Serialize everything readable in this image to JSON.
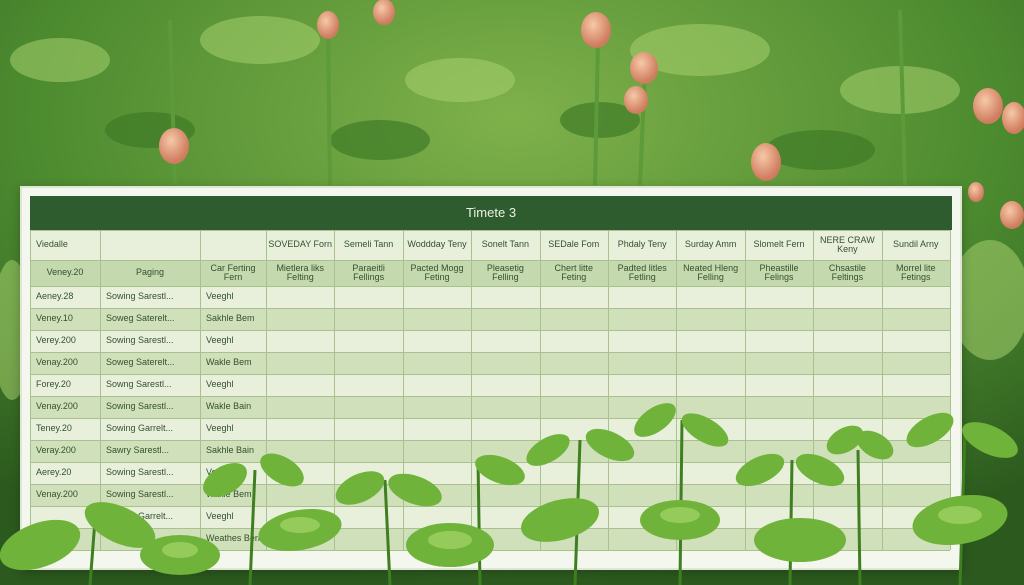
{
  "colors": {
    "banner": "#2f5c2e",
    "header_fill": "#c4d9ae",
    "row_dark": "#cfe0bb",
    "row_light": "#e8f0dc"
  },
  "table": {
    "title": "Timete 3",
    "corner_label": "Viedalle",
    "subheaders": [
      "Veney.20",
      "Paging",
      "Car Ferting Fern"
    ],
    "columns": [
      {
        "name": "SOVEDAY Forn",
        "sub": "Mietlera liks Felting"
      },
      {
        "name": "Semeli Tann",
        "sub": "Paraeitli Fellings"
      },
      {
        "name": "Woddday Teny",
        "sub": "Pacted Mogg Feting"
      },
      {
        "name": "Sonelt Tann",
        "sub": "Pleasetig Felling"
      },
      {
        "name": "SEDale Fom",
        "sub": "Chert litte Feting"
      },
      {
        "name": "Phdaly Teny",
        "sub": "Padted litles Fetling"
      },
      {
        "name": "Surday Amm",
        "sub": "Neated Hleng Felling"
      },
      {
        "name": "Slomelt Fern",
        "sub": "Pheastille Felings"
      },
      {
        "name": "NERE CRAW Keny",
        "sub": "Chsastile Feltings"
      },
      {
        "name": "Sundil Arny",
        "sub": "Morrel lite Fetings"
      }
    ],
    "rows": [
      [
        "Aeney.28",
        "Sowing Sarestl...",
        "Veeghl"
      ],
      [
        "Veney.10",
        "Soweg Saterelt...",
        "Sakhle Bem"
      ],
      [
        "Verey.200",
        "Sowing Sarestl...",
        "Veeghl"
      ],
      [
        "Venay.200",
        "Soweg Saterelt...",
        "Wakle Bem"
      ],
      [
        "Forey.20",
        "Sowng Sarestl...",
        "Veeghl"
      ],
      [
        "Venay.200",
        "Sowing Sarestl...",
        "Wakle Bain"
      ],
      [
        "Teney.20",
        "Sowing Garrelt...",
        "Veeghl"
      ],
      [
        "Veray.200",
        "Sawry Sarestl...",
        "Sakhle Bain"
      ],
      [
        "Aerey.20",
        "Sowing Sarestl...",
        "Veeghl"
      ],
      [
        "Venay.200",
        "Sowing Sarestl...",
        "Wakle Bem"
      ],
      [
        "",
        "Sowing Garrelt...",
        "Veeghl"
      ],
      [
        "",
        "",
        "Weathes Bern"
      ]
    ]
  }
}
